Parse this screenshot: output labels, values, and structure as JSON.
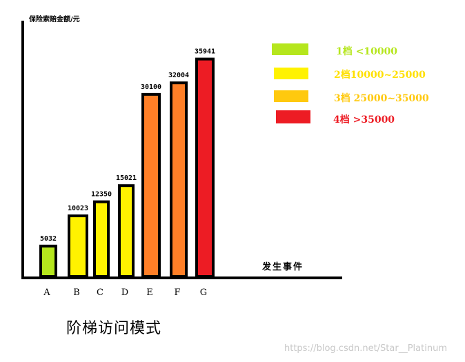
{
  "chart_data": {
    "type": "bar",
    "ylabel": "保险索赔金额/元",
    "xlabel": "发生事件",
    "categories": [
      "A",
      "B",
      "C",
      "D",
      "E",
      "F",
      "G"
    ],
    "values": [
      5032,
      10023,
      12350,
      15021,
      30100,
      32004,
      35941
    ],
    "value_labels": [
      "5032",
      "10023",
      "12350",
      "15021",
      "30100",
      "32004",
      "35941"
    ],
    "bar_colors": [
      "#b5e61d",
      "#fff200",
      "#fff200",
      "#fff200",
      "#ff7f27",
      "#ff7f27",
      "#ed1c24"
    ],
    "ylim": [
      0,
      40000
    ],
    "grid": false,
    "legend_placement": "top-right",
    "legend": [
      {
        "label": "1档  <10000",
        "color": "#b5e61d",
        "text_color": "#b5e61d"
      },
      {
        "label": "2档10000~25000",
        "color": "#fff200",
        "text_color": "#ffe000"
      },
      {
        "label": "3档  25000~35000",
        "color": "#ffc90e",
        "text_color": "#ffc90e"
      },
      {
        "label": "4档  >35000",
        "color": "#ed1c24",
        "text_color": "#ed1c24"
      }
    ]
  },
  "caption": "阶梯访问模式",
  "watermark": "https://blog.csdn.net/Star__Platinum"
}
